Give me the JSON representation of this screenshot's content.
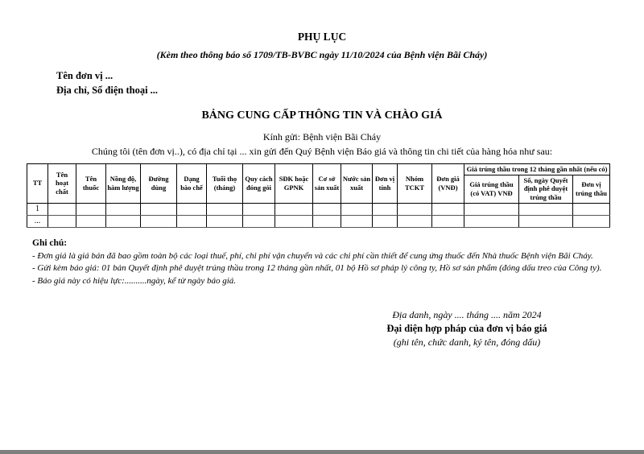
{
  "page": {
    "title": "PHỤ LỤC",
    "subtitle": "(Kèm theo thông báo số 1709/TB-BVBC ngày 11/10/2024 của Bệnh viện Bãi Cháy)",
    "unit_name_line": "Tên đơn vị ...",
    "address_line": "Địa chỉ, Số điện thoại ...",
    "form_title": "BẢNG CUNG CẤP THÔNG TIN VÀ CHÀO GIÁ",
    "salutation": "Kính gửi: Bệnh viện Bãi Cháy",
    "intro": "Chúng tôi (tên đơn vị..), có địa chỉ tại ... xin gửi đến Quý Bệnh viện Báo giá và thông tin chi tiết của hàng hóa như sau:"
  },
  "table": {
    "columns": [
      "TT",
      "Tên hoạt chất",
      "Tên thuốc",
      "Nồng độ, hàm lượng",
      "Đường dùng",
      "Dạng bào chế",
      "Tuổi thọ (tháng)",
      "Quy cách đóng gói",
      "SĐK hoặc GPNK",
      "Cơ sở sản xuất",
      "Nước sản xuất",
      "Đơn vị tính",
      "Nhóm TCKT",
      "Đơn giá (VNĐ)"
    ],
    "group_header": "Giá trúng thầu trong 12 tháng gần nhất (nếu có)",
    "sub_columns": [
      "Giá trúng thầu (có VAT) VNĐ",
      "Số, ngày Quyết định phê duyệt trúng thầu",
      "Đơn vị trúng thầu"
    ],
    "body_rows": [
      [
        "1",
        "",
        "",
        "",
        "",
        "",
        "",
        "",
        "",
        "",
        "",
        "",
        "",
        "",
        "",
        "",
        ""
      ],
      [
        "...",
        "",
        "",
        "",
        "",
        "",
        "",
        "",
        "",
        "",
        "",
        "",
        "",
        "",
        "",
        "",
        ""
      ]
    ]
  },
  "notes": {
    "title": "Ghi chú:",
    "items": [
      "- Đơn giá là giá bán đã bao gồm toàn bộ các loại thuế, phí, chi phí vận chuyển và các chi phí cần thiết để cung ứng thuốc đến Nhà thuốc Bệnh viện Bãi Cháy.",
      "- Gửi kèm báo giá: 01 bản Quyết định phê duyệt trúng thầu trong 12 tháng gần nhất, 01 bộ Hồ sơ pháp lý công ty, Hồ sơ sản phẩm (đóng dấu treo của Công ty).",
      "- Báo giá này có hiệu lực:..........ngày, kể từ ngày báo giá."
    ]
  },
  "signature": {
    "place_date": "Địa danh, ngày .... tháng .... năm 2024",
    "role": "Đại diện hợp pháp của đơn vị báo giá",
    "note": "(ghi tên, chức danh, ký tên, đóng dấu)"
  }
}
